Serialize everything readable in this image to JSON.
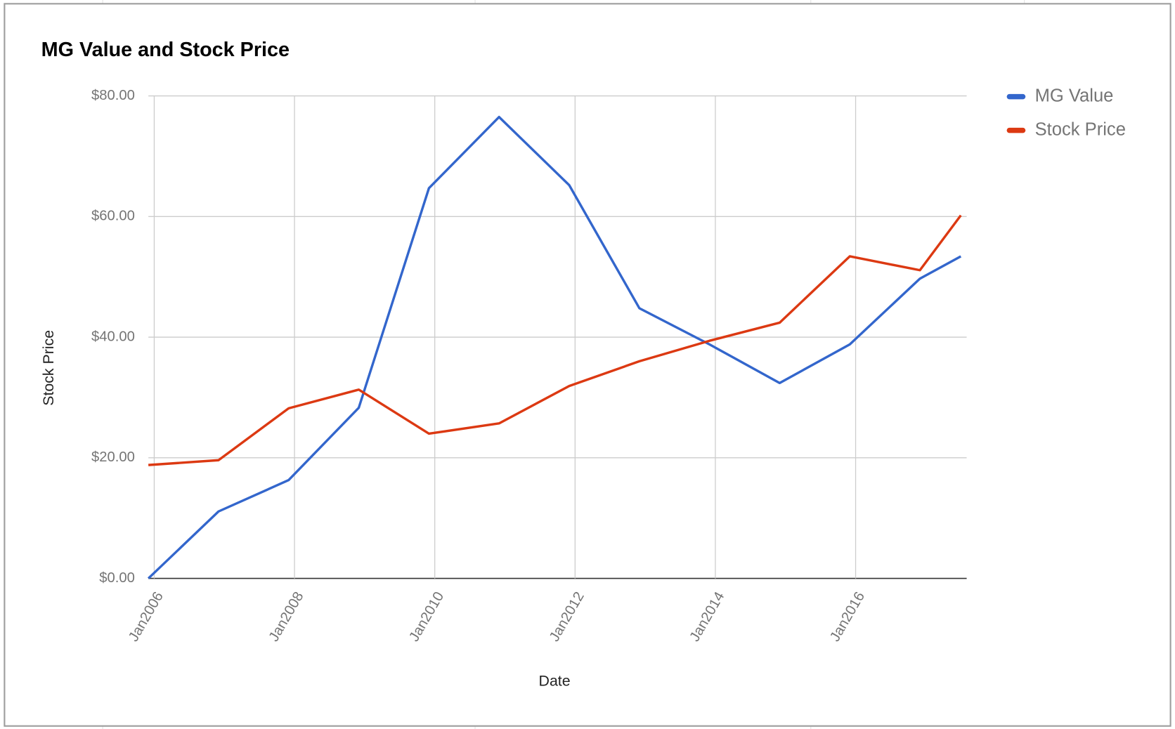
{
  "chart_data": {
    "type": "line",
    "title": "MG Value and Stock Price",
    "x_label": "Date",
    "y_label": "Stock Price",
    "x": [
      "2005-12",
      "2006-12",
      "2007-12",
      "2008-12",
      "2009-12",
      "2010-12",
      "2011-12",
      "2012-12",
      "2013-12",
      "2014-12",
      "2015-12",
      "2016-12",
      "2017-07"
    ],
    "series": [
      {
        "name": "MG Value",
        "color": "#3366cc",
        "values": [
          0,
          11.1,
          16.3,
          28.3,
          64.7,
          76.5,
          65.2,
          44.8,
          38.8,
          32.4,
          38.8,
          49.7,
          53.4
        ]
      },
      {
        "name": "Stock Price",
        "color": "#dc3912",
        "values": [
          18.8,
          19.6,
          28.2,
          31.3,
          24.0,
          25.7,
          31.9,
          36.0,
          39.4,
          42.4,
          53.4,
          51.1,
          60.2
        ]
      }
    ],
    "xlim": [
      "2005-12",
      "2017-08"
    ],
    "xticks": [
      {
        "value": "2006-01",
        "label": "Jan2006"
      },
      {
        "value": "2008-01",
        "label": "Jan2008"
      },
      {
        "value": "2010-01",
        "label": "Jan2010"
      },
      {
        "value": "2012-01",
        "label": "Jan2012"
      },
      {
        "value": "2014-01",
        "label": "Jan2014"
      },
      {
        "value": "2016-01",
        "label": "Jan2016"
      }
    ],
    "ylim": [
      0,
      80
    ],
    "yticks": [
      {
        "value": 0,
        "label": "$0.00"
      },
      {
        "value": 20,
        "label": "$20.00"
      },
      {
        "value": 40,
        "label": "$40.00"
      },
      {
        "value": 60,
        "label": "$60.00"
      },
      {
        "value": 80,
        "label": "$80.00"
      }
    ],
    "grid": true,
    "legend": "right"
  }
}
